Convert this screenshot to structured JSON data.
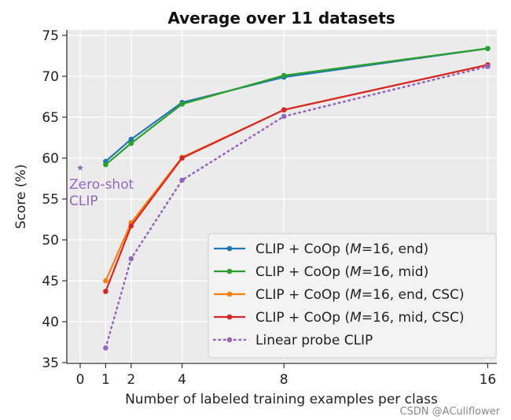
{
  "chart_data": {
    "type": "line",
    "title": "Average over 11 datasets",
    "xlabel": "Number of labeled training examples per class",
    "ylabel": "Score (%)",
    "xlim": [
      -0.5,
      16.4
    ],
    "ylim": [
      35,
      75.5
    ],
    "xticks": [
      0,
      1,
      2,
      4,
      8,
      16
    ],
    "yticks": [
      35,
      40,
      45,
      50,
      55,
      60,
      65,
      70,
      75
    ],
    "grid": true,
    "legend_position": "bottom-right",
    "x": [
      1,
      2,
      4,
      8,
      16
    ],
    "series": [
      {
        "name": "CLIP + CoOp (M=16, end)",
        "color": "#1f77b4",
        "style": "solid",
        "values": [
          59.6,
          62.3,
          66.8,
          69.9,
          73.4
        ]
      },
      {
        "name": "CLIP + CoOp (M=16, mid)",
        "color": "#2ca02c",
        "style": "solid",
        "values": [
          59.2,
          61.8,
          66.6,
          70.1,
          73.4
        ]
      },
      {
        "name": "CLIP + CoOp (M=16, end, CSC)",
        "color": "#ff7f0e",
        "style": "solid",
        "values": [
          45.0,
          52.1,
          60.1,
          65.9,
          71.4
        ]
      },
      {
        "name": "CLIP + CoOp (M=16, mid, CSC)",
        "color": "#d62728",
        "style": "solid",
        "values": [
          43.7,
          51.7,
          60.0,
          65.9,
          71.4
        ]
      },
      {
        "name": "Linear probe CLIP",
        "color": "#9467bd",
        "style": "dotted",
        "values": [
          36.8,
          47.7,
          57.3,
          65.1,
          71.2
        ]
      }
    ],
    "annotations": [
      {
        "text_lines": [
          "Zero-shot",
          "CLIP"
        ],
        "x": 0,
        "y": 58.8,
        "color": "#9467bd",
        "marker": "star"
      }
    ]
  },
  "watermark": "CSDN @ACuliflower"
}
